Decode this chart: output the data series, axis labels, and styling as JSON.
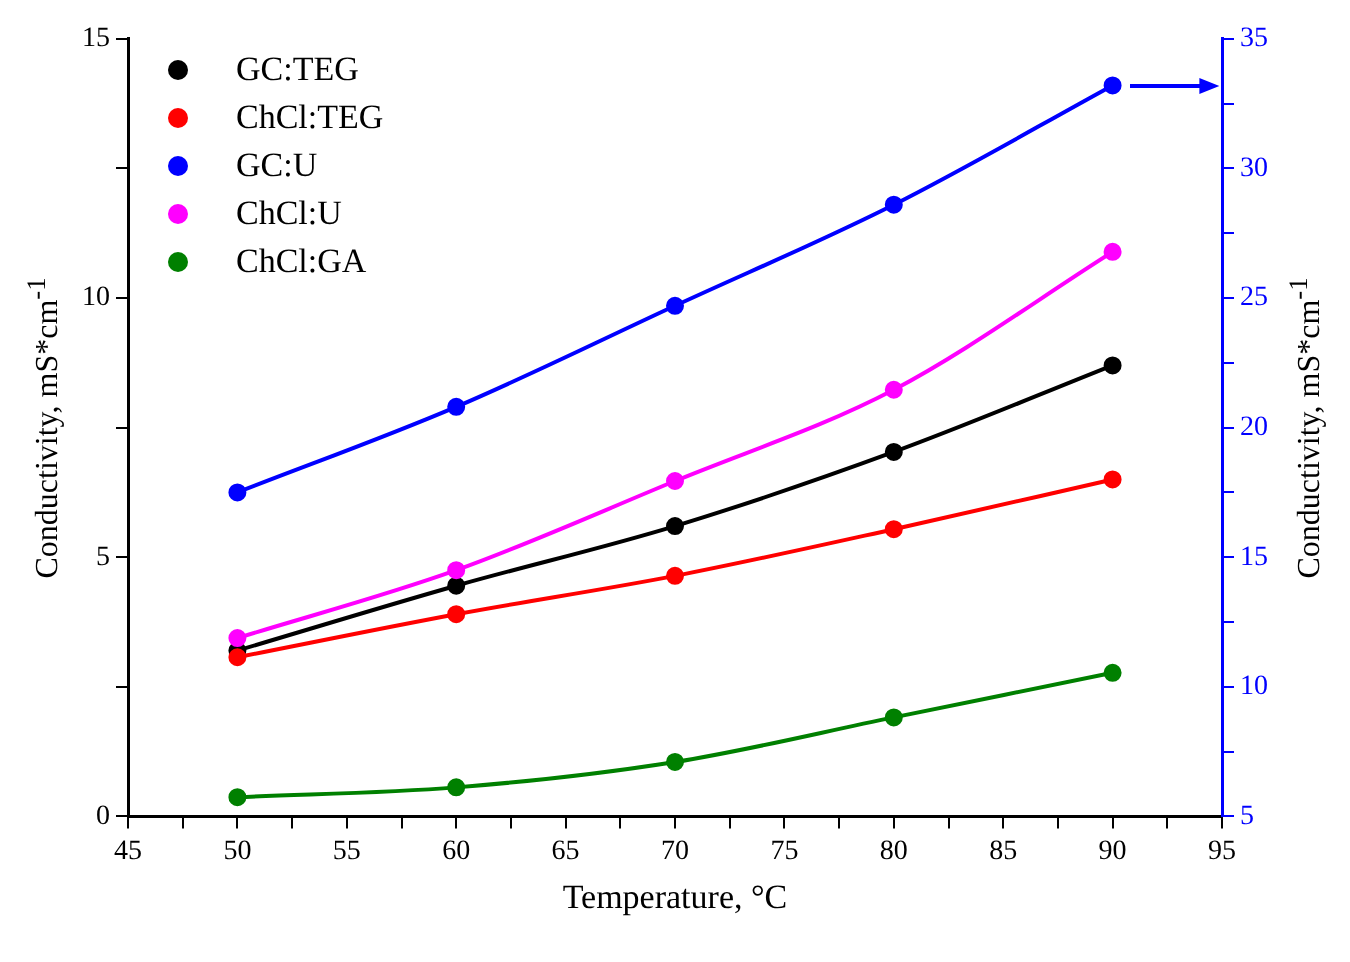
{
  "chart_data": {
    "type": "line",
    "xlabel": "Temperature, °C",
    "ylabel": "Conductivity, mS*cm$^{-1}$",
    "y2label": "Conductivity, mS*cm$^{-1}$",
    "x": [
      50,
      60,
      70,
      80,
      90
    ],
    "series": [
      {
        "name": "GC:TEG",
        "color": "#000000",
        "values": [
          3.2,
          4.45,
          5.6,
          7.03,
          8.7
        ]
      },
      {
        "name": "ChCl:TEG",
        "color": "#ff0000",
        "values": [
          3.07,
          3.9,
          4.64,
          5.54,
          6.5
        ]
      },
      {
        "name": "GC:U",
        "color": "#0000ff",
        "values": [
          17.5,
          20.8,
          24.7,
          28.6,
          33.2
        ],
        "axis": "y2"
      },
      {
        "name": "ChCl:U",
        "color": "#ff00ff",
        "values": [
          3.44,
          4.75,
          6.47,
          8.23,
          10.89
        ]
      },
      {
        "name": "ChCl:GA",
        "color": "#008000",
        "values": [
          0.37,
          0.56,
          1.05,
          1.91,
          2.77
        ]
      }
    ],
    "xlim": [
      45,
      95
    ],
    "xticks": [
      45,
      {
        "value": 47.5,
        "label": null
      },
      50,
      {
        "value": 52.5,
        "label": null
      },
      55,
      {
        "value": 57.5,
        "label": null
      },
      60,
      {
        "value": 62.5,
        "label": null
      },
      65,
      {
        "value": 67.5,
        "label": null
      },
      70,
      {
        "value": 72.5,
        "label": null
      },
      75,
      {
        "value": 77.5,
        "label": null
      },
      80,
      {
        "value": 82.5,
        "label": null
      },
      85,
      {
        "value": 87.5,
        "label": null
      },
      90,
      {
        "value": 92.5,
        "label": null
      },
      95
    ],
    "ylim": [
      0,
      15
    ],
    "yticks": [
      0,
      {
        "value": 2.5,
        "label": null
      },
      5,
      {
        "value": 7.5,
        "label": null
      },
      10,
      {
        "value": 12.5,
        "label": null
      },
      15
    ],
    "y2lim": [
      5,
      35
    ],
    "y2ticks": [
      5,
      {
        "value": 7.5,
        "label": null
      },
      10,
      {
        "value": 12.5,
        "label": null
      },
      15,
      {
        "value": 17.5,
        "label": null
      },
      20,
      {
        "value": 22.5,
        "label": null
      },
      25,
      {
        "value": 27.5,
        "label": null
      },
      30,
      {
        "value": 32.5,
        "label": null
      },
      35
    ],
    "grid": false,
    "legend": "top left",
    "marker": "circle",
    "line_style": "solid"
  }
}
